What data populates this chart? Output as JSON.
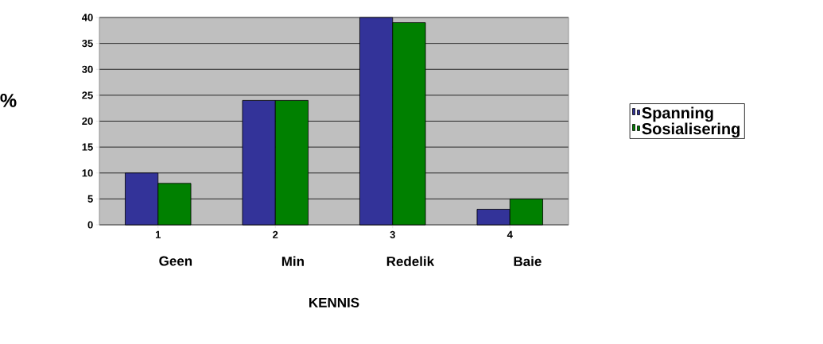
{
  "chart_data": {
    "type": "bar",
    "xlabel": "KENNIS",
    "ylabel": "%",
    "categories": [
      "1",
      "2",
      "3",
      "4"
    ],
    "annotations": [
      "Geen",
      "Min",
      "Redelik",
      "Baie"
    ],
    "series": [
      {
        "name": "Spanning",
        "color": "#333399",
        "values": [
          10,
          24,
          40,
          3
        ]
      },
      {
        "name": "Sosialisering",
        "color": "#008000",
        "values": [
          8,
          24,
          39,
          5
        ]
      }
    ],
    "ylim": [
      0,
      40
    ],
    "yticks": [
      0,
      5,
      10,
      15,
      20,
      25,
      30,
      35,
      40
    ],
    "grid": "y",
    "legend": "right"
  }
}
